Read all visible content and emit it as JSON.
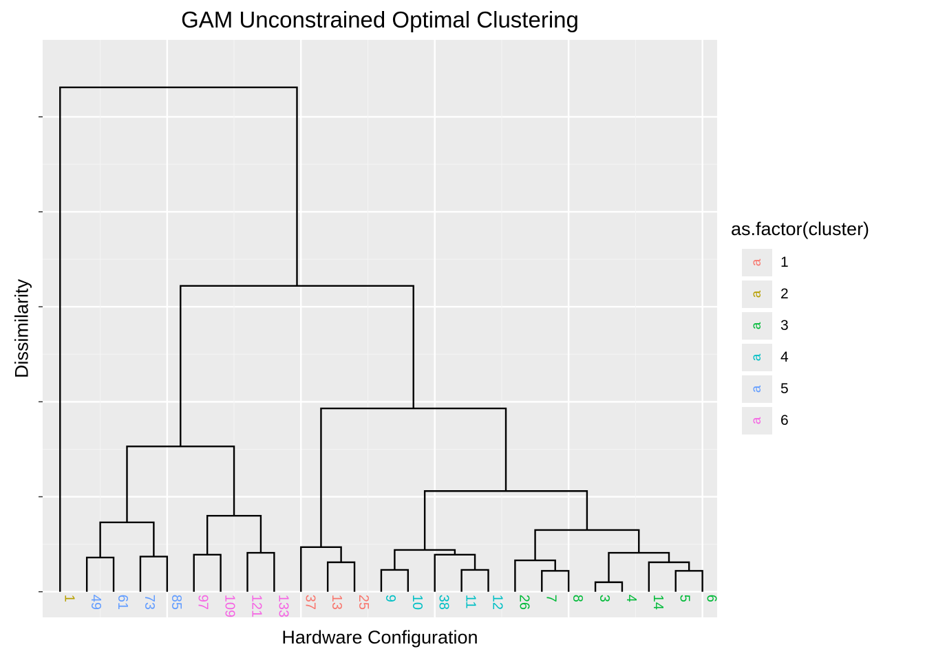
{
  "chart_data": {
    "type": "dendrogram",
    "title": "GAM Unconstrained Optimal Clustering",
    "xlabel": "Hardware Configuration",
    "ylabel": "Dissimilarity",
    "legend": {
      "title": "as.factor(cluster)",
      "placement": "right",
      "key_glyph": "a",
      "entries": [
        {
          "label": "1",
          "color": "#F8766D"
        },
        {
          "label": "2",
          "color": "#B79F00"
        },
        {
          "label": "3",
          "color": "#00BA38"
        },
        {
          "label": "4",
          "color": "#00BFC4"
        },
        {
          "label": "5",
          "color": "#619CFF"
        },
        {
          "label": "6",
          "color": "#F564E3"
        }
      ]
    },
    "leaves": [
      {
        "label": "1",
        "cluster": 2
      },
      {
        "label": "49",
        "cluster": 5
      },
      {
        "label": "61",
        "cluster": 5
      },
      {
        "label": "73",
        "cluster": 5
      },
      {
        "label": "85",
        "cluster": 5
      },
      {
        "label": "97",
        "cluster": 6
      },
      {
        "label": "109",
        "cluster": 6
      },
      {
        "label": "121",
        "cluster": 6
      },
      {
        "label": "133",
        "cluster": 6
      },
      {
        "label": "37",
        "cluster": 1
      },
      {
        "label": "13",
        "cluster": 1
      },
      {
        "label": "25",
        "cluster": 1
      },
      {
        "label": "9",
        "cluster": 4
      },
      {
        "label": "10",
        "cluster": 4
      },
      {
        "label": "38",
        "cluster": 4
      },
      {
        "label": "11",
        "cluster": 4
      },
      {
        "label": "12",
        "cluster": 4
      },
      {
        "label": "26",
        "cluster": 3
      },
      {
        "label": "7",
        "cluster": 3
      },
      {
        "label": "8",
        "cluster": 3
      },
      {
        "label": "3",
        "cluster": 3
      },
      {
        "label": "4",
        "cluster": 3
      },
      {
        "label": "14",
        "cluster": 3
      },
      {
        "label": "5",
        "cluster": 3
      },
      {
        "label": "6",
        "cluster": 3
      }
    ],
    "merges": [
      {
        "left": "L1",
        "right": "L2",
        "height": 0.36
      },
      {
        "left": "L3",
        "right": "L4",
        "height": 0.37
      },
      {
        "left": "M0",
        "right": "M1",
        "height": 0.73
      },
      {
        "left": "L5",
        "right": "L6",
        "height": 0.39
      },
      {
        "left": "L7",
        "right": "L8",
        "height": 0.41
      },
      {
        "left": "M3",
        "right": "M4",
        "height": 0.8
      },
      {
        "left": "M2",
        "right": "M5",
        "height": 1.53
      },
      {
        "left": "L10",
        "right": "L11",
        "height": 0.31
      },
      {
        "left": "L9",
        "right": "M7",
        "height": 0.47
      },
      {
        "left": "L12",
        "right": "L13",
        "height": 0.23
      },
      {
        "left": "L15",
        "right": "L16",
        "height": 0.23
      },
      {
        "left": "L14",
        "right": "M10",
        "height": 0.39
      },
      {
        "left": "M9",
        "right": "M11",
        "height": 0.44
      },
      {
        "left": "L18",
        "right": "L19",
        "height": 0.22
      },
      {
        "left": "L17",
        "right": "M13",
        "height": 0.33
      },
      {
        "left": "L20",
        "right": "L21",
        "height": 0.1
      },
      {
        "left": "L23",
        "right": "L24",
        "height": 0.22
      },
      {
        "left": "L22",
        "right": "M16",
        "height": 0.31
      },
      {
        "left": "M15",
        "right": "M17",
        "height": 0.41
      },
      {
        "left": "M14",
        "right": "M18",
        "height": 0.65
      },
      {
        "left": "M12",
        "right": "M19",
        "height": 1.06
      },
      {
        "left": "M8",
        "right": "M20",
        "height": 1.93
      },
      {
        "left": "M6",
        "right": "M21",
        "height": 3.22
      },
      {
        "left": "L0",
        "right": "M22",
        "height": 5.31
      }
    ],
    "ylim": [
      -0.27,
      5.81
    ],
    "grid": true
  }
}
